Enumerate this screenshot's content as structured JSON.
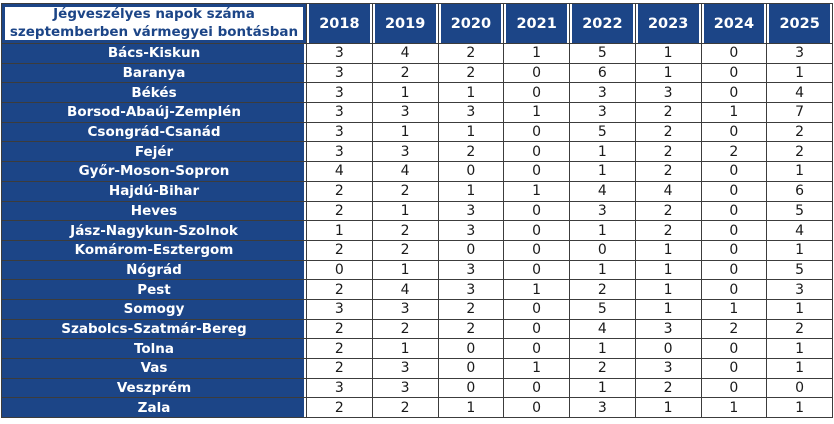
{
  "table": {
    "title_display": "Jégveszélyes napok száma\nszeptemberben vármegyei bontásban"
  },
  "chart_data": {
    "type": "table",
    "title": "Jégveszélyes napok száma szeptemberben vármegyei bontásban",
    "columns": [
      "2018",
      "2019",
      "2020",
      "2021",
      "2022",
      "2023",
      "2024",
      "2025"
    ],
    "rows": [
      {
        "county": "Bács-Kiskun",
        "values": [
          3,
          4,
          2,
          1,
          5,
          1,
          0,
          3
        ]
      },
      {
        "county": "Baranya",
        "values": [
          3,
          2,
          2,
          0,
          6,
          1,
          0,
          1
        ]
      },
      {
        "county": "Békés",
        "values": [
          3,
          1,
          1,
          0,
          3,
          3,
          0,
          4
        ]
      },
      {
        "county": "Borsod-Abaúj-Zemplén",
        "values": [
          3,
          3,
          3,
          1,
          3,
          2,
          1,
          7
        ]
      },
      {
        "county": "Csongrád-Csanád",
        "values": [
          3,
          1,
          1,
          0,
          5,
          2,
          0,
          2
        ]
      },
      {
        "county": "Fejér",
        "values": [
          3,
          3,
          2,
          0,
          1,
          2,
          2,
          2
        ]
      },
      {
        "county": "Győr-Moson-Sopron",
        "values": [
          4,
          4,
          0,
          0,
          1,
          2,
          0,
          1
        ]
      },
      {
        "county": "Hajdú-Bihar",
        "values": [
          2,
          2,
          1,
          1,
          4,
          4,
          0,
          6
        ]
      },
      {
        "county": "Heves",
        "values": [
          2,
          1,
          3,
          0,
          3,
          2,
          0,
          5
        ]
      },
      {
        "county": "Jász-Nagykun-Szolnok",
        "values": [
          1,
          2,
          3,
          0,
          1,
          2,
          0,
          4
        ]
      },
      {
        "county": "Komárom-Esztergom",
        "values": [
          2,
          2,
          0,
          0,
          0,
          1,
          0,
          1
        ]
      },
      {
        "county": "Nógrád",
        "values": [
          0,
          1,
          3,
          0,
          1,
          1,
          0,
          5
        ]
      },
      {
        "county": "Pest",
        "values": [
          2,
          4,
          3,
          1,
          2,
          1,
          0,
          3
        ]
      },
      {
        "county": "Somogy",
        "values": [
          3,
          3,
          2,
          0,
          5,
          1,
          1,
          1
        ]
      },
      {
        "county": "Szabolcs-Szatmár-Bereg",
        "values": [
          2,
          2,
          2,
          0,
          4,
          3,
          2,
          2
        ]
      },
      {
        "county": "Tolna",
        "values": [
          2,
          1,
          0,
          0,
          1,
          0,
          0,
          1
        ]
      },
      {
        "county": "Vas",
        "values": [
          2,
          3,
          0,
          1,
          2,
          3,
          0,
          1
        ]
      },
      {
        "county": "Veszprém",
        "values": [
          3,
          3,
          0,
          0,
          1,
          2,
          0,
          0
        ]
      },
      {
        "county": "Zala",
        "values": [
          2,
          2,
          1,
          0,
          3,
          1,
          1,
          1
        ]
      }
    ],
    "layout": {
      "header_fill": "#1C4587",
      "header_text": "#FFFFFF",
      "title_cell_fill": "#FFFFFF",
      "title_text": "#1C4587",
      "grid_border": "#3C3C3C",
      "value_text": "#1A1A1A",
      "grid": true
    }
  }
}
